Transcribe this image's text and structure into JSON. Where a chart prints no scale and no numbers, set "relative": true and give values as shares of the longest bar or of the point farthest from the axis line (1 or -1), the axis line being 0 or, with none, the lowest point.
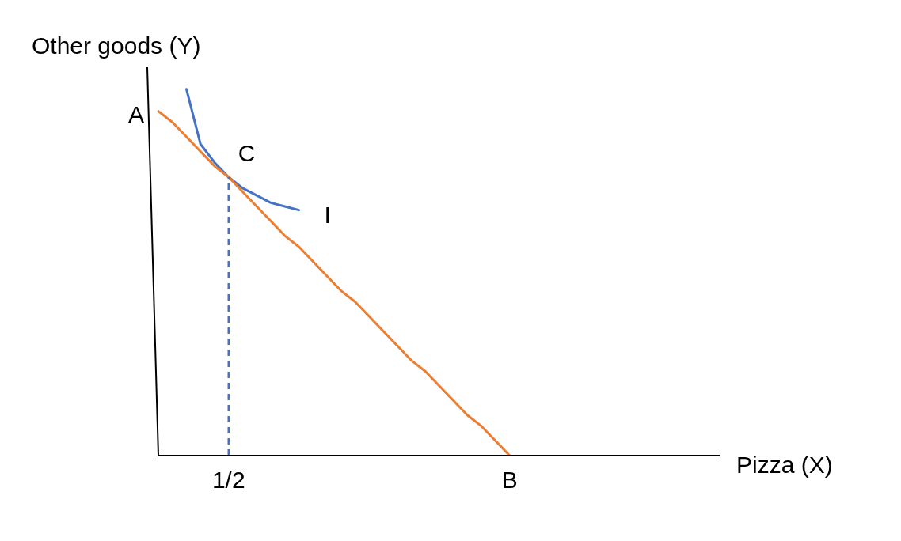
{
  "chart_data": {
    "type": "line",
    "relative": true,
    "xlabel": "Pizza (X)",
    "ylabel": "Other goods (Y)",
    "legend": false,
    "marker": "none",
    "categories": [
      null,
      null,
      null,
      null,
      null,
      "1/2",
      null,
      null,
      null,
      null,
      null,
      null,
      null,
      null,
      null,
      null,
      null,
      null,
      null,
      null,
      null,
      null,
      null,
      null,
      null,
      "B",
      null,
      null,
      null,
      null,
      null,
      null,
      null,
      null,
      null,
      null,
      null,
      null,
      null,
      null,
      null
    ],
    "series": [
      {
        "color": "#ed7d31",
        "values": [
          0.94,
          0.91,
          0.87,
          0.83,
          0.79,
          0.76,
          0.72,
          0.68,
          0.64,
          0.6,
          0.57,
          0.53,
          0.49,
          0.45,
          0.42,
          0.38,
          0.34,
          0.3,
          0.26,
          0.23,
          0.19,
          0.15,
          0.11,
          0.08,
          0.04,
          0,
          null,
          null,
          null,
          null,
          null,
          null,
          null,
          null,
          null,
          null,
          null,
          null,
          null,
          null,
          null
        ]
      },
      {
        "name": "I",
        "color": "#4472c4",
        "values": [
          null,
          null,
          1.0,
          0.85,
          0.8,
          0.76,
          0.73,
          0.71,
          0.69,
          0.68,
          0.67,
          null,
          null,
          null,
          null,
          null,
          null,
          null,
          null,
          null,
          null,
          null,
          null,
          null,
          null,
          null,
          null,
          null,
          null,
          null,
          null,
          null,
          null,
          null,
          null,
          null,
          null,
          null,
          null,
          null,
          null
        ]
      }
    ],
    "ref_lines": [
      {
        "axis": "x",
        "value": "1/2",
        "color": "#4472c4",
        "line_style": "dashed"
      }
    ],
    "annotations": [
      "A",
      {
        "text": "C",
        "x": "1/2",
        "y": 0.76
      }
    ]
  }
}
